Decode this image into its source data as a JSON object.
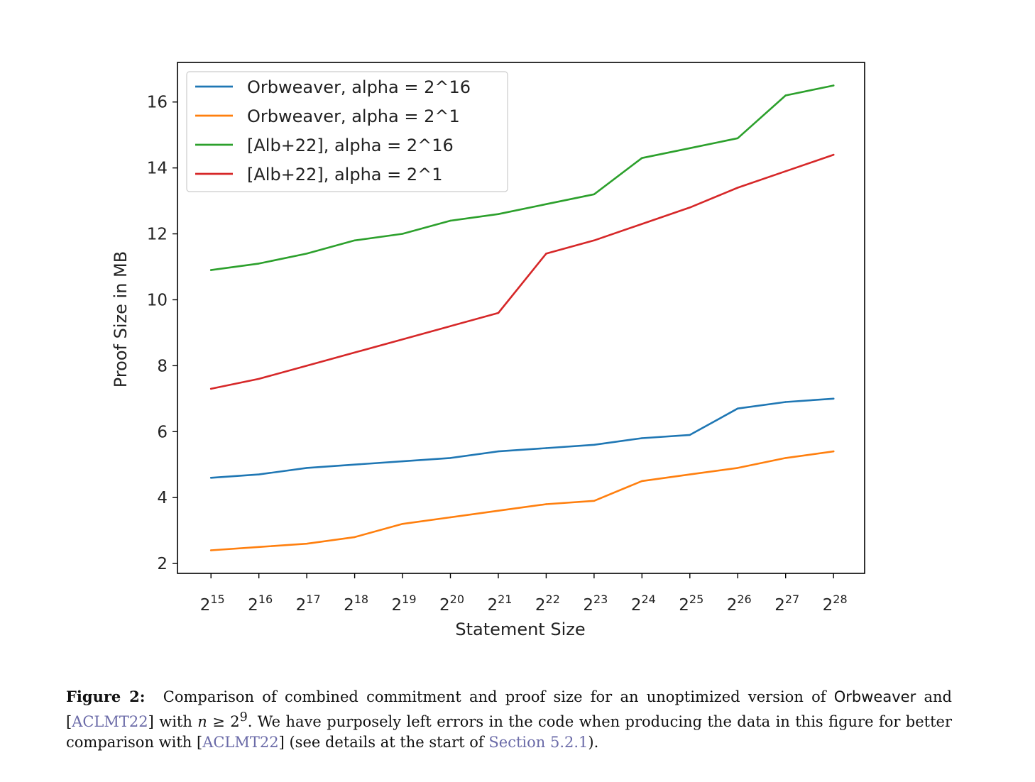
{
  "chart_data": {
    "type": "line",
    "title": "",
    "xlabel": "Statement Size",
    "ylabel": "Proof Size in MB",
    "x_base": "2",
    "x": [
      15,
      16,
      17,
      18,
      19,
      20,
      21,
      22,
      23,
      24,
      25,
      26,
      27,
      28
    ],
    "x_tick_labels": [
      "15",
      "16",
      "17",
      "18",
      "19",
      "20",
      "21",
      "22",
      "23",
      "24",
      "25",
      "26",
      "27",
      "28"
    ],
    "y_ticks": [
      2,
      4,
      6,
      8,
      10,
      12,
      14,
      16
    ],
    "y_tick_labels": [
      "2",
      "4",
      "6",
      "8",
      "10",
      "12",
      "14",
      "16"
    ],
    "xlim": [
      14.3,
      28.65
    ],
    "ylim": [
      1.7,
      17.2
    ],
    "grid": false,
    "legend_position": "top-left",
    "series": [
      {
        "name": "Orbweaver, alpha = 2^16",
        "color": "#1f77b4",
        "values": [
          4.6,
          4.7,
          4.9,
          5.0,
          5.1,
          5.2,
          5.4,
          5.5,
          5.6,
          5.8,
          5.9,
          6.7,
          6.9,
          7.0
        ]
      },
      {
        "name": "Orbweaver, alpha = 2^1",
        "color": "#ff7f0e",
        "values": [
          2.4,
          2.5,
          2.6,
          2.8,
          3.2,
          3.4,
          3.6,
          3.8,
          3.9,
          4.5,
          4.7,
          4.9,
          5.2,
          5.4
        ]
      },
      {
        "name": "[Alb+22], alpha = 2^16",
        "color": "#2ca02c",
        "values": [
          10.9,
          11.1,
          11.4,
          11.8,
          12.0,
          12.4,
          12.6,
          12.9,
          13.2,
          14.3,
          14.6,
          14.9,
          16.2,
          16.5
        ]
      },
      {
        "name": "[Alb+22], alpha = 2^1",
        "color": "#d62728",
        "values": [
          7.3,
          7.6,
          8.0,
          8.4,
          8.8,
          9.2,
          9.6,
          11.4,
          11.8,
          12.3,
          12.8,
          13.4,
          13.9,
          14.4
        ]
      }
    ]
  },
  "caption": {
    "label": "Figure 2:",
    "t1": "Comparison of combined commitment and proof size for an unoptimized version of",
    "t2": "Orbweaver",
    "t3": "and [",
    "t4": "ACLMT22",
    "t5": "] with",
    "t6": "n",
    "t7": "≥ 2",
    "t8": "9",
    "t9": ". We have purposely left errors in the code when producing the data in this figure for better comparison with [",
    "t10": "ACLMT22",
    "t11": "] (see details at the start of",
    "t12": "Section 5.2.1",
    "t13": ")."
  }
}
